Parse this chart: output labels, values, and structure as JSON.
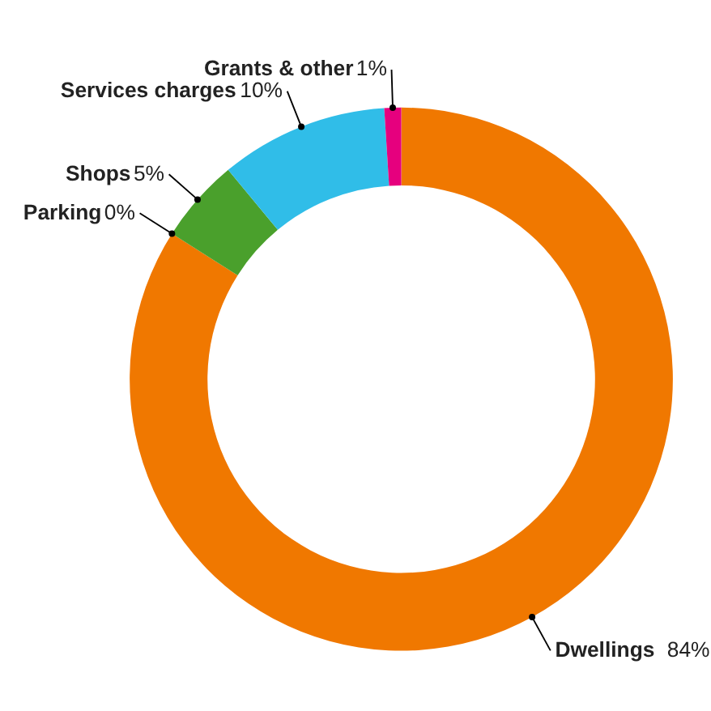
{
  "chart_data": {
    "type": "donut",
    "categories": [
      "Dwellings",
      "Parking",
      "Shops",
      "Services charges",
      "Grants & other"
    ],
    "values": [
      84,
      0,
      5,
      10,
      1
    ],
    "colors": [
      "#f07800",
      "#3b2c8a",
      "#4aa02c",
      "#30bde8",
      "#e6007e"
    ],
    "value_labels": [
      "84%",
      "0%",
      "5%",
      "10%",
      "1%"
    ]
  }
}
